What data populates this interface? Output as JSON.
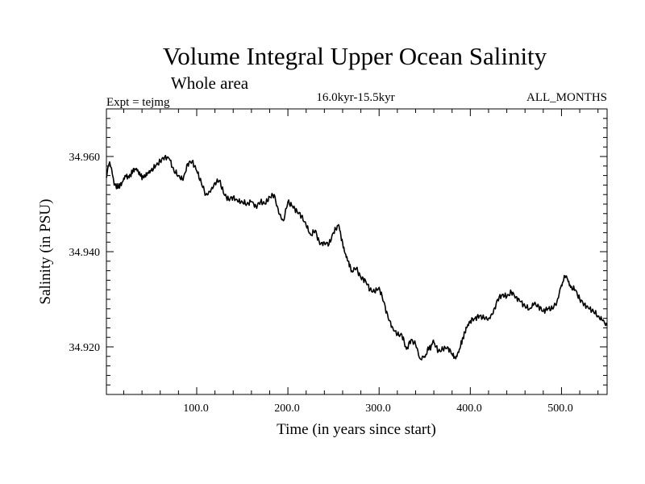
{
  "chart_data": {
    "type": "line",
    "title": "Volume Integral Upper Ocean Salinity",
    "subtitle": "Whole area",
    "experiment": "Expt = tejmg",
    "period": "16.0kyr-15.5kyr",
    "months": "ALL_MONTHS",
    "xlabel": "Time (in years since start)",
    "ylabel": "Salinity (in PSU)",
    "xlim": [
      1,
      550
    ],
    "ylim": [
      34.91,
      34.97
    ],
    "xticks": [
      100,
      200,
      300,
      400,
      500
    ],
    "xtick_labels": [
      "100.0",
      "200.0",
      "300.0",
      "400.0",
      "500.0"
    ],
    "yticks": [
      34.92,
      34.94,
      34.96
    ],
    "ytick_labels": [
      "34.920",
      "34.940",
      "34.960"
    ],
    "series": [
      {
        "name": "Salinity",
        "color": "#000000",
        "x": [
          1,
          4,
          7,
          10,
          14,
          18,
          22,
          26,
          30,
          34,
          38,
          42,
          46,
          50,
          55,
          60,
          65,
          70,
          75,
          80,
          85,
          90,
          95,
          100,
          105,
          110,
          115,
          120,
          125,
          130,
          135,
          140,
          145,
          150,
          155,
          160,
          165,
          170,
          175,
          180,
          185,
          190,
          195,
          200,
          205,
          210,
          215,
          220,
          225,
          230,
          235,
          240,
          245,
          250,
          255,
          258,
          262,
          266,
          270,
          275,
          280,
          285,
          290,
          295,
          300,
          305,
          310,
          315,
          320,
          325,
          330,
          335,
          340,
          345,
          350,
          353,
          357,
          360,
          365,
          370,
          375,
          380,
          384,
          388,
          392,
          396,
          400,
          405,
          410,
          415,
          420,
          425,
          430,
          435,
          440,
          445,
          450,
          455,
          460,
          465,
          470,
          475,
          480,
          485,
          490,
          495,
          500,
          503,
          506,
          510,
          515,
          520,
          525,
          530,
          535,
          540,
          545,
          550
        ],
        "values": [
          34.9555,
          34.9585,
          34.957,
          34.954,
          34.9535,
          34.9545,
          34.956,
          34.9555,
          34.957,
          34.9575,
          34.956,
          34.9555,
          34.9565,
          34.957,
          34.958,
          34.959,
          34.96,
          34.9595,
          34.957,
          34.956,
          34.955,
          34.9585,
          34.959,
          34.957,
          34.9545,
          34.952,
          34.9525,
          34.9545,
          34.955,
          34.952,
          34.951,
          34.9515,
          34.9505,
          34.9505,
          34.95,
          34.9505,
          34.9495,
          34.9505,
          34.95,
          34.9515,
          34.952,
          34.948,
          34.9465,
          34.9505,
          34.9495,
          34.9485,
          34.9475,
          34.9455,
          34.9435,
          34.9445,
          34.9415,
          34.942,
          34.9415,
          34.944,
          34.9455,
          34.9435,
          34.94,
          34.938,
          34.936,
          34.9365,
          34.9345,
          34.934,
          34.932,
          34.9315,
          34.9325,
          34.9295,
          34.926,
          34.924,
          34.9225,
          34.9225,
          34.9195,
          34.9215,
          34.9205,
          34.9175,
          34.918,
          34.9195,
          34.92,
          34.921,
          34.919,
          34.9195,
          34.92,
          34.9185,
          34.9175,
          34.9195,
          34.922,
          34.924,
          34.9255,
          34.926,
          34.9265,
          34.926,
          34.926,
          34.927,
          34.93,
          34.931,
          34.9305,
          34.9315,
          34.9305,
          34.9295,
          34.9285,
          34.928,
          34.929,
          34.9285,
          34.9275,
          34.928,
          34.928,
          34.9295,
          34.933,
          34.935,
          34.9345,
          34.9325,
          34.932,
          34.93,
          34.929,
          34.928,
          34.9275,
          34.9265,
          34.9255,
          34.9245
        ]
      }
    ]
  }
}
